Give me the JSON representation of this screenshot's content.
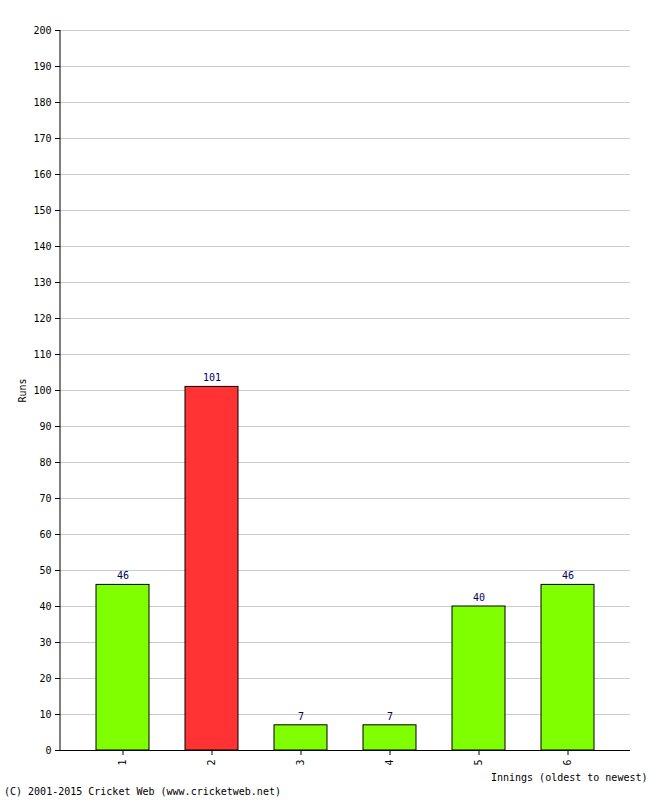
{
  "chart_data": {
    "type": "bar",
    "categories": [
      "1",
      "2",
      "3",
      "4",
      "5",
      "6"
    ],
    "values": [
      46,
      101,
      7,
      7,
      40,
      46
    ],
    "colors": [
      "#7fff00",
      "#ff3333",
      "#7fff00",
      "#7fff00",
      "#7fff00",
      "#7fff00"
    ],
    "xlabel": "Innings (oldest to newest)",
    "ylabel": "Runs",
    "ylim": [
      0,
      200
    ],
    "yticks": [
      0,
      10,
      20,
      30,
      40,
      50,
      60,
      70,
      80,
      90,
      100,
      110,
      120,
      130,
      140,
      150,
      160,
      170,
      180,
      190,
      200
    ],
    "grid": true,
    "data_labels": true,
    "caption": "(C) 2001-2015 Cricket Web (www.cricketweb.net)"
  }
}
